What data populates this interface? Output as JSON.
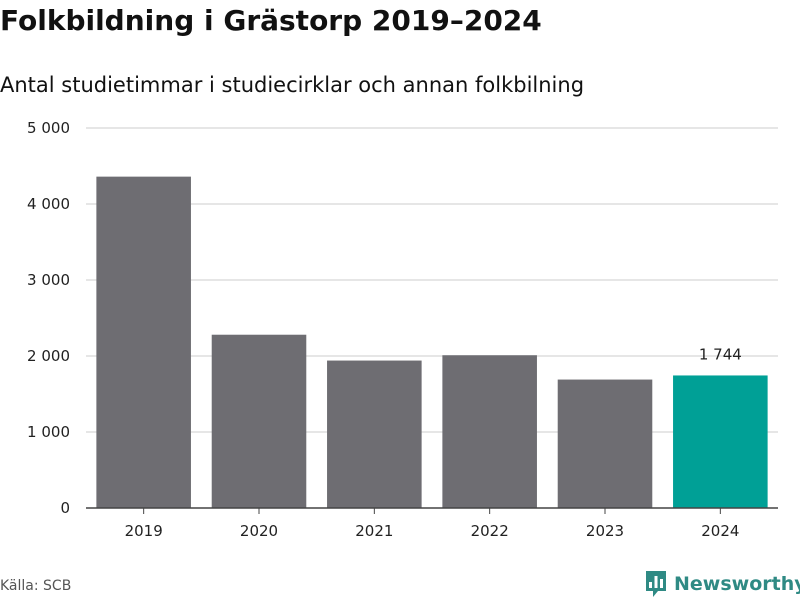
{
  "title": "Folkbildning i Grästorp 2019–2024",
  "subtitle": "Antal studietimmar i studiecirklar och annan folkbilning",
  "source": "Källa: SCB",
  "brand": {
    "name": "Newsworthy",
    "icon": "newsworthy-logo-icon",
    "color": "#2f8a84"
  },
  "colors": {
    "bar": "#6e6d72",
    "highlight": "#00a096",
    "grid": "#dddddd",
    "axis": "#444444"
  },
  "chart_data": {
    "type": "bar",
    "categories": [
      "2019",
      "2020",
      "2021",
      "2022",
      "2023",
      "2024"
    ],
    "values": [
      4360,
      2280,
      1940,
      2010,
      1690,
      1744
    ],
    "highlight_index": 5,
    "data_labels": [
      {
        "index": 5,
        "text": "1 744"
      }
    ],
    "ylim": [
      0,
      5000
    ],
    "yticks": [
      0,
      1000,
      2000,
      3000,
      4000,
      5000
    ],
    "ytick_labels": [
      "0",
      "1 000",
      "2 000",
      "3 000",
      "4 000",
      "5 000"
    ],
    "xlabel": "",
    "ylabel": "",
    "grid": true,
    "legend": "none"
  }
}
